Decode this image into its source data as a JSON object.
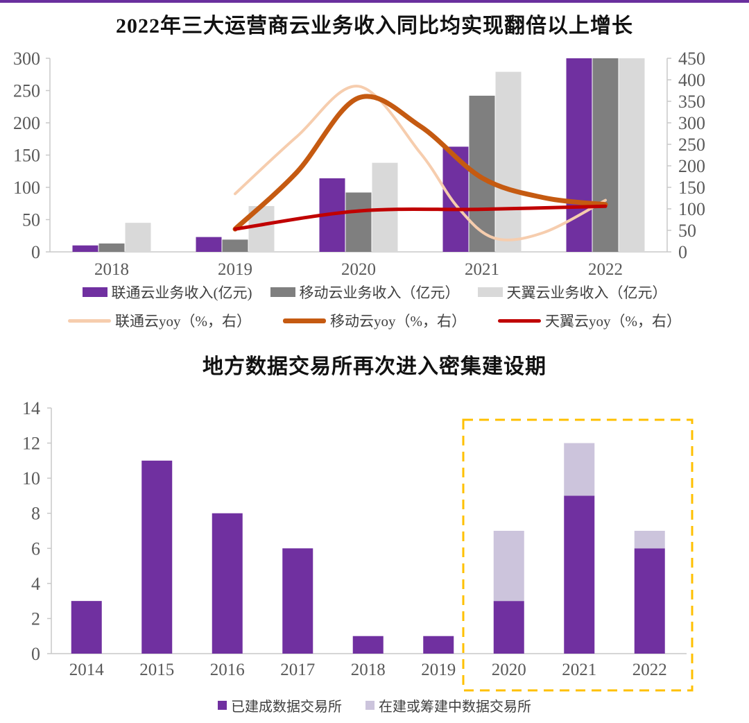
{
  "page": {
    "accent_rule_color": "#6A2F9E"
  },
  "chart_data": [
    {
      "type": "bar+line",
      "title": "2022年三大运营商云业务收入同比均实现翻倍以上增长",
      "categories": [
        "2018",
        "2019",
        "2020",
        "2021",
        "2022"
      ],
      "left_axis": {
        "min": 0,
        "max": 300,
        "step": 50,
        "labels": [
          "0",
          "50",
          "100",
          "150",
          "200",
          "250",
          "300"
        ]
      },
      "right_axis": {
        "min": 0,
        "max": 450,
        "step": 50,
        "labels": [
          "0",
          "50",
          "100",
          "150",
          "200",
          "250",
          "300",
          "350",
          "400",
          "450"
        ]
      },
      "grid": "off",
      "legend_position": "bottom",
      "bars_clipped_at_top": true,
      "bar_series": [
        {
          "name": "联通云业务收入(亿元)",
          "color": "#7030A0",
          "values": [
            10,
            23,
            114,
            163,
            300
          ]
        },
        {
          "name": "移动云业务收入（亿元）",
          "color": "#7F7F7F",
          "values": [
            13,
            19,
            92,
            242,
            300
          ]
        },
        {
          "name": "天翼云业务收入（亿元）",
          "color": "#D9D9D9",
          "values": [
            45,
            71,
            138,
            279,
            300
          ]
        }
      ],
      "line_series": [
        {
          "name": "联通云yoy（%，右）",
          "color": "#F6CDAE",
          "width": 4,
          "values_by_year": {
            "2019": 135,
            "2020": 385,
            "2021": 70,
            "2022": 120
          },
          "curve_points": [
            [
              2019,
              135
            ],
            [
              2019.5,
              268
            ],
            [
              2020,
              385
            ],
            [
              2020.5,
              230
            ],
            [
              2020.8,
              105
            ],
            [
              2021.1,
              32
            ],
            [
              2021.5,
              45
            ],
            [
              2022,
              120
            ]
          ]
        },
        {
          "name": "移动云yoy（%，右）",
          "color": "#C55A11",
          "width": 7,
          "values_by_year": {
            "2019": 53,
            "2020": 358,
            "2021": 172,
            "2022": 110
          },
          "curve_points": [
            [
              2019,
              53
            ],
            [
              2019.5,
              185
            ],
            [
              2020,
              358
            ],
            [
              2020.5,
              292
            ],
            [
              2021,
              172
            ],
            [
              2021.5,
              126
            ],
            [
              2022,
              110
            ]
          ]
        },
        {
          "name": "天翼云yoy（%，右）",
          "color": "#C00000",
          "width": 5,
          "values_by_year": {
            "2019": 53,
            "2020": 95,
            "2021": 99,
            "2022": 106
          },
          "curve_points": [
            [
              2019,
              53
            ],
            [
              2020,
              95
            ],
            [
              2021,
              99
            ],
            [
              2022,
              106
            ]
          ]
        }
      ]
    },
    {
      "type": "bar",
      "subtype": "stacked",
      "title": "地方数据交易所再次进入密集建设期",
      "categories": [
        "2014",
        "2015",
        "2016",
        "2017",
        "2018",
        "2019",
        "2020",
        "2021",
        "2022"
      ],
      "y_axis": {
        "min": 0,
        "max": 14,
        "step": 2,
        "labels": [
          "0",
          "2",
          "4",
          "6",
          "8",
          "10",
          "12",
          "14"
        ]
      },
      "grid": "off",
      "legend_position": "bottom",
      "series": [
        {
          "name": "已建成数据交易所",
          "color": "#7030A0",
          "values": [
            3,
            11,
            8,
            6,
            1,
            1,
            3,
            9,
            6
          ]
        },
        {
          "name": "在建或筹建中数据交易所",
          "color": "#CCC4DC",
          "values": [
            0,
            0,
            0,
            0,
            0,
            0,
            4,
            3,
            1
          ]
        }
      ],
      "highlight_box": {
        "color": "#FFC000",
        "style": "dashed",
        "from_category": "2020",
        "to_category": "2022"
      }
    }
  ]
}
